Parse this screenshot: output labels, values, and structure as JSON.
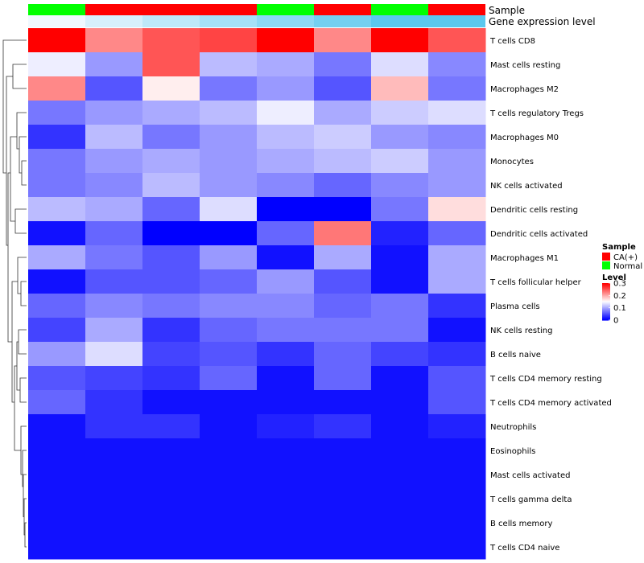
{
  "chart_data": {
    "type": "heatmap",
    "annotation_tracks": [
      {
        "name": "Sample",
        "values": [
          "Normal",
          "CA(+)",
          "CA(+)",
          "CA(+)",
          "Normal",
          "CA(+)",
          "Normal",
          "CA(+)"
        ]
      },
      {
        "name": "Gene expression level",
        "values": [
          0.0,
          0.05,
          0.1,
          0.15,
          0.2,
          0.25,
          0.3,
          0.3
        ]
      }
    ],
    "rows": [
      "T cells CD8",
      "Mast cells resting",
      "Macrophages M2",
      "T cells regulatory  Tregs",
      "Macrophages M0",
      "Monocytes",
      "NK cells activated",
      "Dendritic cells resting",
      "Dendritic cells activated",
      "Macrophages M1",
      "T cells follicular helper",
      "Plasma cells",
      "NK cells resting",
      "B cells naive",
      "T cells CD4 memory resting",
      "T cells CD4 memory activated",
      "Neutrophils",
      "Eosinophils",
      "Mast cells activated",
      "T cells gamma delta",
      "B cells memory",
      "T cells CD4 naive"
    ],
    "values": [
      [
        0.3,
        0.22,
        0.25,
        0.26,
        0.3,
        0.22,
        0.3,
        0.25
      ],
      [
        0.14,
        0.09,
        0.25,
        0.11,
        0.1,
        0.07,
        0.13,
        0.08
      ],
      [
        0.22,
        0.05,
        0.16,
        0.07,
        0.09,
        0.05,
        0.19,
        0.07
      ],
      [
        0.07,
        0.09,
        0.1,
        0.11,
        0.14,
        0.1,
        0.12,
        0.13
      ],
      [
        0.03,
        0.11,
        0.07,
        0.09,
        0.11,
        0.12,
        0.09,
        0.08
      ],
      [
        0.07,
        0.09,
        0.1,
        0.09,
        0.1,
        0.11,
        0.12,
        0.09
      ],
      [
        0.07,
        0.08,
        0.11,
        0.09,
        0.08,
        0.06,
        0.08,
        0.09
      ],
      [
        0.11,
        0.1,
        0.06,
        0.13,
        0.0,
        0.0,
        0.07,
        0.17
      ],
      [
        0.01,
        0.06,
        0.0,
        0.0,
        0.06,
        0.23,
        0.02,
        0.06
      ],
      [
        0.1,
        0.07,
        0.05,
        0.09,
        0.01,
        0.1,
        0.01,
        0.1
      ],
      [
        0.01,
        0.05,
        0.05,
        0.06,
        0.09,
        0.05,
        0.01,
        0.1
      ],
      [
        0.06,
        0.08,
        0.07,
        0.08,
        0.08,
        0.06,
        0.07,
        0.03
      ],
      [
        0.04,
        0.1,
        0.03,
        0.06,
        0.07,
        0.07,
        0.07,
        0.01
      ],
      [
        0.09,
        0.13,
        0.04,
        0.05,
        0.03,
        0.06,
        0.04,
        0.03
      ],
      [
        0.05,
        0.04,
        0.03,
        0.06,
        0.01,
        0.06,
        0.01,
        0.05
      ],
      [
        0.06,
        0.03,
        0.01,
        0.01,
        0.01,
        0.01,
        0.01,
        0.05
      ],
      [
        0.01,
        0.03,
        0.03,
        0.01,
        0.02,
        0.03,
        0.01,
        0.02
      ],
      [
        0.01,
        0.01,
        0.01,
        0.01,
        0.01,
        0.01,
        0.01,
        0.01
      ],
      [
        0.01,
        0.01,
        0.01,
        0.01,
        0.01,
        0.01,
        0.01,
        0.01
      ],
      [
        0.01,
        0.01,
        0.01,
        0.01,
        0.01,
        0.01,
        0.01,
        0.01
      ],
      [
        0.01,
        0.01,
        0.01,
        0.01,
        0.01,
        0.01,
        0.01,
        0.01
      ],
      [
        0.01,
        0.01,
        0.01,
        0.01,
        0.01,
        0.01,
        0.01,
        0.01
      ]
    ],
    "color_scale": {
      "min": 0,
      "mid": 0.15,
      "max": 0.3,
      "low": "#0000ff",
      "mid_color": "#ffffff",
      "high": "#ff0000"
    },
    "sample_colors": {
      "CA(+)": "#ff0000",
      "Normal": "#00ff00"
    },
    "expression_colors": {
      "low": "#f0f8ff",
      "high": "#5bc8ee"
    },
    "legend": {
      "sample_title": "Sample",
      "sample_items": [
        "CA(+)",
        "Normal"
      ],
      "level_title": "Level",
      "level_ticks": [
        "0.3",
        "0.2",
        "0.1",
        "0"
      ],
      "level_tick_values": [
        0.3,
        0.2,
        0.1,
        0
      ]
    },
    "dendrogram": "rows"
  }
}
